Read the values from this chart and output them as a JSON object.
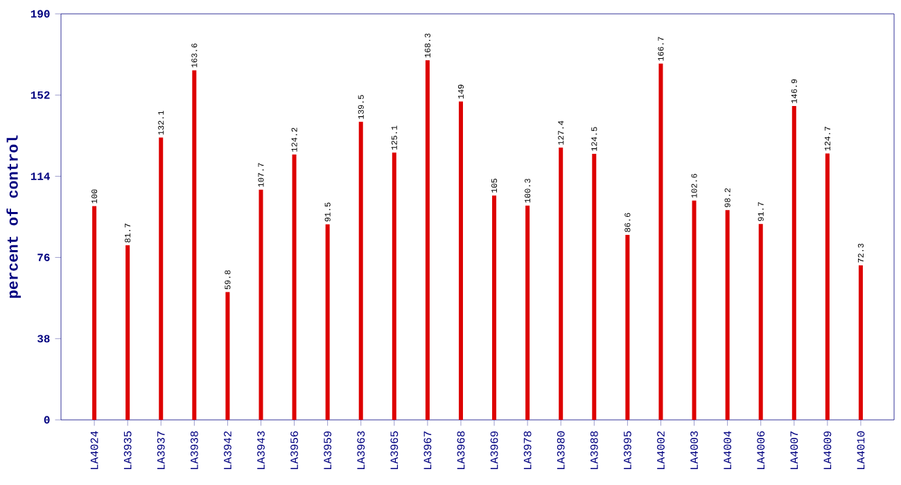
{
  "chart_data": {
    "type": "bar",
    "ylabel": "percent of control",
    "categories": [
      "LA4024",
      "LA3935",
      "LA3937",
      "LA3938",
      "LA3942",
      "LA3943",
      "LA3956",
      "LA3959",
      "LA3963",
      "LA3965",
      "LA3967",
      "LA3968",
      "LA3969",
      "LA3978",
      "LA3980",
      "LA3988",
      "LA3995",
      "LA4002",
      "LA4003",
      "LA4004",
      "LA4006",
      "LA4007",
      "LA4009",
      "LA4010"
    ],
    "values": [
      100,
      81.7,
      132.1,
      163.6,
      59.8,
      107.7,
      124.2,
      91.5,
      139.5,
      125.1,
      168.3,
      149,
      105,
      100.3,
      127.4,
      124.5,
      86.6,
      166.7,
      102.6,
      98.2,
      91.7,
      146.9,
      124.7,
      72.3
    ],
    "color": "#dd0000",
    "ylim": [
      0,
      190
    ],
    "yticks": [
      0,
      38,
      76,
      114,
      152,
      190
    ],
    "data_labels": true
  }
}
